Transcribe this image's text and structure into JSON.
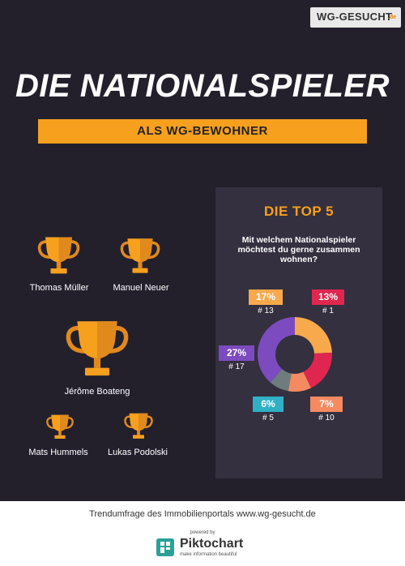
{
  "brand": {
    "logo_text": "WG-GESUCHT",
    "logo_tld": ".de"
  },
  "header": {
    "title": "DIE NATIONALSPIELER",
    "subtitle": "ALS WG-BEWOHNER"
  },
  "players": [
    {
      "name": "Thomas Müller"
    },
    {
      "name": "Manuel Neuer"
    },
    {
      "name": "Jérôme Boateng"
    },
    {
      "name": "Mats Hummels"
    },
    {
      "name": "Lukas Podolski"
    }
  ],
  "chart_data": {
    "type": "pie",
    "title": "DIE TOP 5",
    "subtitle": "Mit welchem Nationalspieler möchtest du gerne zusammen wohnen?",
    "series": [
      {
        "percent": "17%",
        "rank": "# 13",
        "value": 17,
        "color": "#f7a94b"
      },
      {
        "percent": "13%",
        "rank": "# 1",
        "value": 13,
        "color": "#e0264f"
      },
      {
        "percent": "7%",
        "rank": "# 10",
        "value": 7,
        "color": "#f58a62"
      },
      {
        "percent": "6%",
        "rank": "# 5",
        "value": 6,
        "color": "#6f7c7c"
      },
      {
        "percent": "27%",
        "rank": "# 17",
        "value": 27,
        "color": "#7c4bc0"
      }
    ],
    "badge_colors": [
      "#f7a94b",
      "#e0264f",
      "#f58a62",
      "#2fb0c4",
      "#7c4bc0"
    ]
  },
  "footer": {
    "text": "Trendumfrage des Immobilienportals www.wg-gesucht.de",
    "powered_by": "powered by",
    "piktochart": "Piktochart",
    "tagline": "make information beautiful"
  }
}
